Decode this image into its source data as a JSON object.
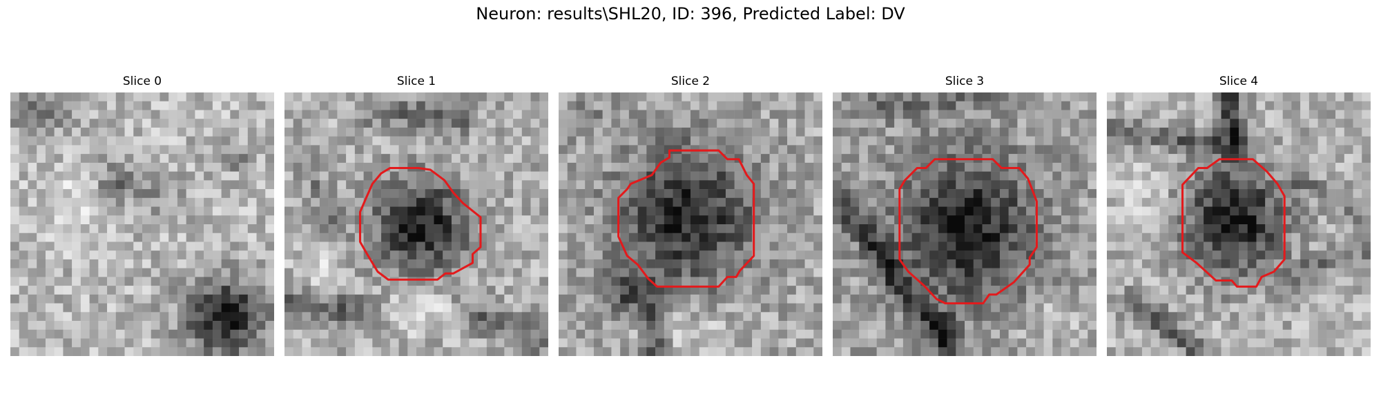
{
  "figure": {
    "title": "Neuron: results\\SHL20, ID: 396, Predicted Label: DV"
  },
  "colors": {
    "contour": "#e31a1c",
    "background": "#ffffff"
  },
  "image_grid": {
    "pixels_per_side": 30,
    "colormap": "gray"
  },
  "panels": [
    {
      "title": "Slice 0",
      "has_contour": false
    },
    {
      "title": "Slice 1",
      "has_contour": true
    },
    {
      "title": "Slice 2",
      "has_contour": true
    },
    {
      "title": "Slice 3",
      "has_contour": true
    },
    {
      "title": "Slice 4",
      "has_contour": true
    }
  ]
}
